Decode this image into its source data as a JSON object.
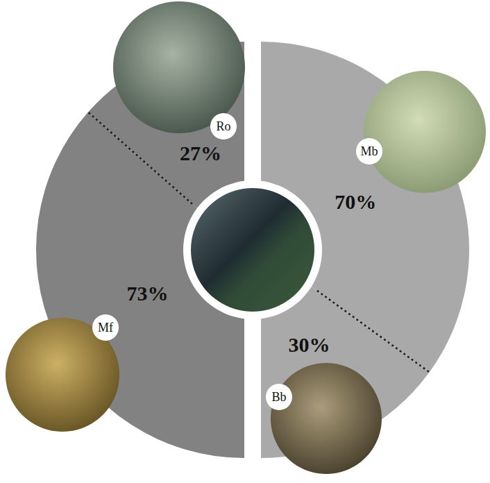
{
  "chart_data": [
    {
      "type": "pie",
      "categories": [
        "Ro",
        "Mf"
      ],
      "values": [
        27,
        73
      ],
      "value_labels": [
        "27%",
        "73%"
      ],
      "color": "#828282",
      "data_labels": true
    },
    {
      "type": "pie",
      "categories": [
        "Mb",
        "Bb"
      ],
      "values": [
        70,
        30
      ],
      "value_labels": [
        "70%",
        "30%"
      ],
      "color": "#a9a9a9",
      "data_labels": true
    }
  ]
}
